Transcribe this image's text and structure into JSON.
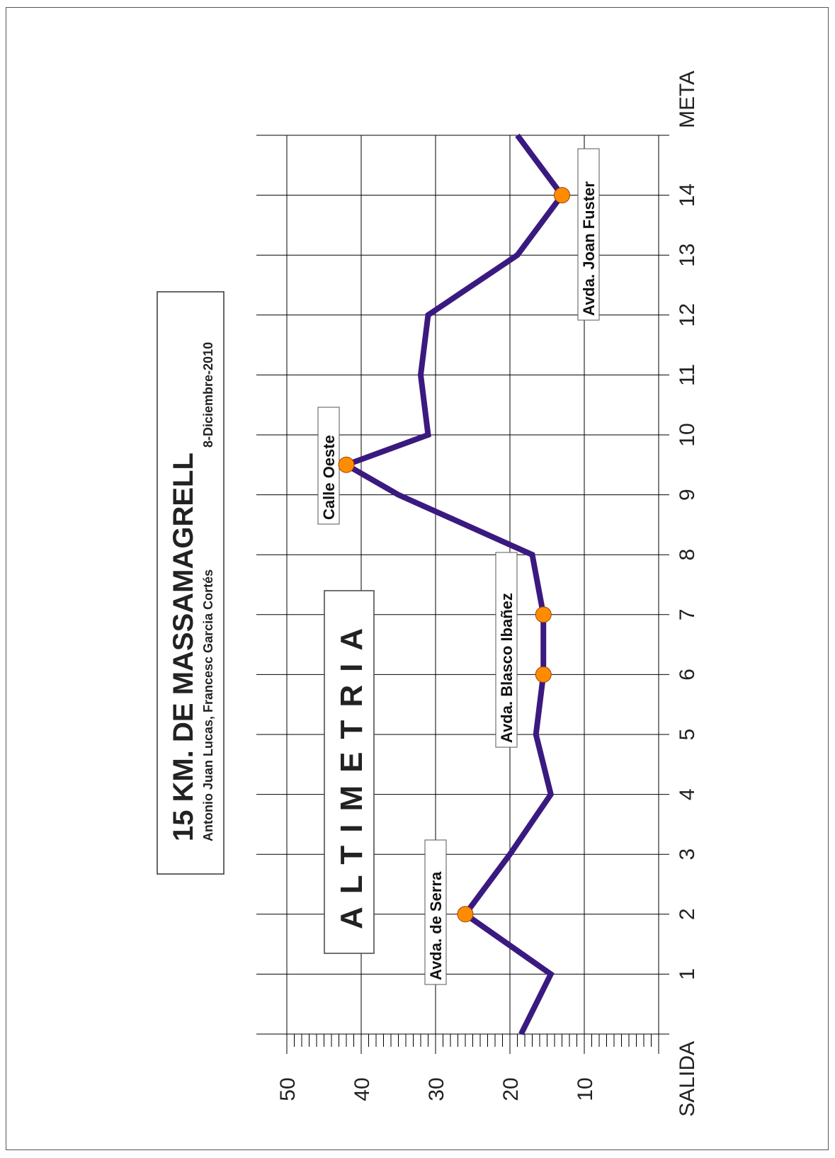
{
  "title": "15 KM. DE MASSAMAGRELL",
  "subtitle_left": "Antonio Juan Lucas, Francesc Garcia Cortés",
  "subtitle_right": "8-Diciembre-2010",
  "panel_label": "ALTIMETRIA",
  "colors": {
    "line": "#3a1a80",
    "marker": "#ff8c00",
    "grid": "#000000"
  },
  "chart_data": {
    "type": "line",
    "orientation": "rotated 90° counter-clockwise (distance axis vertical, altitude axis horizontal)",
    "x_ticks": [
      "SALIDA",
      "1",
      "2",
      "3",
      "4",
      "5",
      "6",
      "7",
      "8",
      "9",
      "10",
      "11",
      "12",
      "13",
      "14",
      "META"
    ],
    "y_ticks": [
      "10",
      "20",
      "30",
      "40",
      "50"
    ],
    "xlim": [
      0,
      15
    ],
    "ylim": [
      0,
      50
    ],
    "grid": true,
    "series": [
      {
        "x": [
          0,
          1,
          2,
          3,
          4,
          5,
          6,
          7,
          8,
          9,
          9.5,
          10,
          11,
          12,
          13,
          14,
          15
        ],
        "y": [
          18.5,
          14.5,
          26,
          20,
          14.5,
          16.5,
          15.5,
          15.5,
          17,
          35,
          42,
          31,
          32,
          31,
          19,
          13,
          19
        ]
      }
    ],
    "annotations": [
      {
        "label": "Avda. de Serra",
        "points": [
          {
            "x": 2,
            "y": 26
          }
        ]
      },
      {
        "label": "Avda. Blasco Ibañez",
        "points": [
          {
            "x": 6,
            "y": 15.5
          },
          {
            "x": 7,
            "y": 15.5
          }
        ]
      },
      {
        "label": "Calle Oeste",
        "points": [
          {
            "x": 9.5,
            "y": 42
          }
        ]
      },
      {
        "label": "Avda. Joan Fuster",
        "points": [
          {
            "x": 14,
            "y": 13
          }
        ]
      }
    ]
  }
}
